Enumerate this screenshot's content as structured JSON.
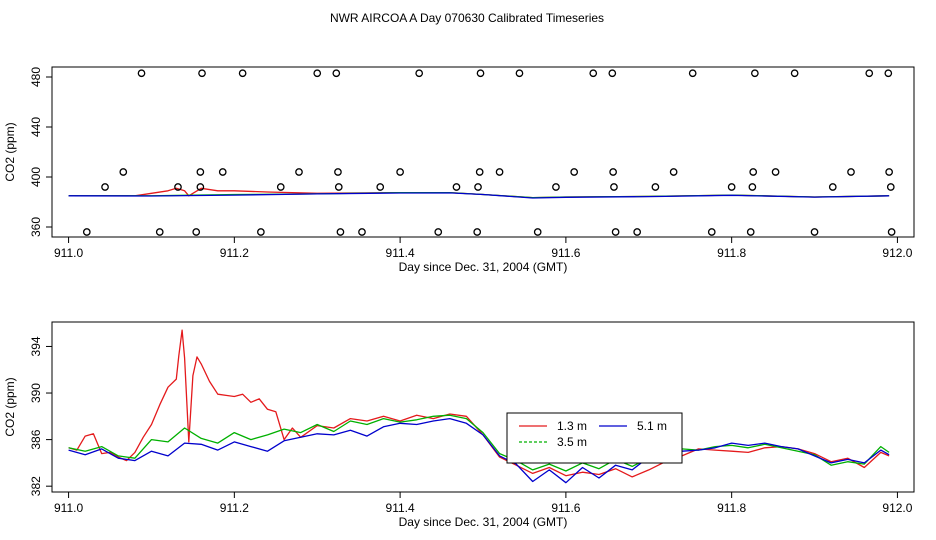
{
  "figure": {
    "title": "NWR AIRCOA A  Day 070630  Calibrated Timeseries"
  },
  "chart_data": [
    {
      "type": "scatter",
      "xlabel": "Day since Dec. 31, 2004 (GMT)",
      "ylabel": "CO2 (ppm)",
      "xlim": [
        910.98,
        912.02
      ],
      "ylim": [
        352,
        488
      ],
      "x_ticks": [
        911.0,
        911.2,
        911.4,
        911.6,
        911.8,
        912.0
      ],
      "x_tick_labels": [
        "911.0",
        "911.2",
        "911.4",
        "911.6",
        "911.8",
        "912.0"
      ],
      "y_ticks": [
        360,
        400,
        440,
        480
      ],
      "y_tick_labels": [
        "360",
        "400",
        "440",
        "480"
      ],
      "grid": false,
      "points": [
        {
          "x": 911.022,
          "y": 356
        },
        {
          "x": 911.044,
          "y": 392
        },
        {
          "x": 911.066,
          "y": 404
        },
        {
          "x": 911.088,
          "y": 483
        },
        {
          "x": 911.11,
          "y": 356
        },
        {
          "x": 911.132,
          "y": 392
        },
        {
          "x": 911.154,
          "y": 356
        },
        {
          "x": 911.159,
          "y": 404
        },
        {
          "x": 911.161,
          "y": 483
        },
        {
          "x": 911.159,
          "y": 392
        },
        {
          "x": 911.186,
          "y": 404
        },
        {
          "x": 911.21,
          "y": 483
        },
        {
          "x": 911.232,
          "y": 356
        },
        {
          "x": 911.256,
          "y": 392
        },
        {
          "x": 911.278,
          "y": 404
        },
        {
          "x": 911.3,
          "y": 483
        },
        {
          "x": 911.323,
          "y": 483
        },
        {
          "x": 911.325,
          "y": 404
        },
        {
          "x": 911.326,
          "y": 392
        },
        {
          "x": 911.328,
          "y": 356
        },
        {
          "x": 911.354,
          "y": 356
        },
        {
          "x": 911.376,
          "y": 392
        },
        {
          "x": 911.4,
          "y": 404
        },
        {
          "x": 911.423,
          "y": 483
        },
        {
          "x": 911.446,
          "y": 356
        },
        {
          "x": 911.468,
          "y": 392
        },
        {
          "x": 911.493,
          "y": 356
        },
        {
          "x": 911.494,
          "y": 392
        },
        {
          "x": 911.496,
          "y": 404
        },
        {
          "x": 911.497,
          "y": 483
        },
        {
          "x": 911.52,
          "y": 404
        },
        {
          "x": 911.544,
          "y": 483
        },
        {
          "x": 911.566,
          "y": 356
        },
        {
          "x": 911.588,
          "y": 392
        },
        {
          "x": 911.61,
          "y": 404
        },
        {
          "x": 911.633,
          "y": 483
        },
        {
          "x": 911.656,
          "y": 483
        },
        {
          "x": 911.657,
          "y": 404
        },
        {
          "x": 911.658,
          "y": 392
        },
        {
          "x": 911.66,
          "y": 356
        },
        {
          "x": 911.686,
          "y": 356
        },
        {
          "x": 911.708,
          "y": 392
        },
        {
          "x": 911.73,
          "y": 404
        },
        {
          "x": 911.753,
          "y": 483
        },
        {
          "x": 911.776,
          "y": 356
        },
        {
          "x": 911.8,
          "y": 392
        },
        {
          "x": 911.823,
          "y": 356
        },
        {
          "x": 911.825,
          "y": 392
        },
        {
          "x": 911.826,
          "y": 404
        },
        {
          "x": 911.828,
          "y": 483
        },
        {
          "x": 911.853,
          "y": 404
        },
        {
          "x": 911.876,
          "y": 483
        },
        {
          "x": 911.9,
          "y": 356
        },
        {
          "x": 911.922,
          "y": 392
        },
        {
          "x": 911.944,
          "y": 404
        },
        {
          "x": 911.966,
          "y": 483
        },
        {
          "x": 911.989,
          "y": 483
        },
        {
          "x": 911.99,
          "y": 404
        },
        {
          "x": 911.992,
          "y": 392
        },
        {
          "x": 911.993,
          "y": 356
        }
      ],
      "series": [
        {
          "name": "1.3 m",
          "color": "#e41a1c",
          "x": [
            911.0,
            911.04,
            911.08,
            911.1,
            911.12,
            911.13,
            911.14,
            911.145,
            911.16,
            911.18,
            911.2,
            911.24,
            911.3,
            911.4,
            911.46,
            911.5,
            911.56,
            911.6,
            911.7,
            911.8,
            911.9,
            911.99
          ],
          "y": [
            385,
            385,
            385,
            387,
            389,
            391,
            389,
            385,
            391,
            389,
            389,
            388,
            387,
            387.5,
            387.5,
            386,
            383.5,
            384,
            384.5,
            385.5,
            384,
            385
          ]
        },
        {
          "name": "3.5 m",
          "color": "#00c000",
          "x": [
            911.0,
            911.1,
            911.2,
            911.3,
            911.4,
            911.46,
            911.5,
            911.56,
            911.6,
            911.7,
            911.8,
            911.9,
            911.99
          ],
          "y": [
            385,
            385,
            386,
            386.5,
            387.5,
            387.5,
            386,
            383.5,
            384,
            384.5,
            385.5,
            384,
            385
          ]
        },
        {
          "name": "5.1 m",
          "color": "#0000cc",
          "x": [
            911.0,
            911.1,
            911.2,
            911.3,
            911.4,
            911.46,
            911.5,
            911.56,
            911.6,
            911.7,
            911.8,
            911.9,
            911.99
          ],
          "y": [
            385,
            384.8,
            385.5,
            386.5,
            387.2,
            387.3,
            386,
            383.2,
            383.8,
            384.3,
            385.4,
            383.9,
            385
          ]
        }
      ]
    },
    {
      "type": "line",
      "xlabel": "Day since Dec. 31, 2004 (GMT)",
      "ylabel": "CO2 (ppm)",
      "xlim": [
        910.98,
        912.02
      ],
      "ylim": [
        381.5,
        396.1
      ],
      "x_ticks": [
        911.0,
        911.2,
        911.4,
        911.6,
        911.8,
        912.0
      ],
      "x_tick_labels": [
        "911.0",
        "911.2",
        "911.4",
        "911.6",
        "911.8",
        "912.0"
      ],
      "y_ticks": [
        382,
        386,
        390,
        394
      ],
      "y_tick_labels": [
        "382",
        "386",
        "390",
        "394"
      ],
      "grid": false,
      "legend_position": "center-right",
      "series": [
        {
          "name": "1.3 m",
          "color": "#e41a1c",
          "x": [
            911.0,
            911.01,
            911.02,
            911.03,
            911.04,
            911.05,
            911.06,
            911.07,
            911.08,
            911.09,
            911.1,
            911.11,
            911.12,
            911.13,
            911.133,
            911.137,
            911.14,
            911.145,
            911.15,
            911.155,
            911.16,
            911.17,
            911.18,
            911.19,
            911.2,
            911.21,
            911.22,
            911.23,
            911.24,
            911.25,
            911.26,
            911.27,
            911.28,
            911.3,
            911.32,
            911.34,
            911.36,
            911.38,
            911.4,
            911.42,
            911.44,
            911.46,
            911.48,
            911.5,
            911.52,
            911.54,
            911.56,
            911.58,
            911.6,
            911.62,
            911.64,
            911.66,
            911.68,
            911.7,
            911.72,
            911.74,
            911.76,
            911.78,
            911.8,
            911.82,
            911.84,
            911.86,
            911.88,
            911.9,
            911.92,
            911.94,
            911.96,
            911.98,
            911.99
          ],
          "y": [
            385.3,
            385.1,
            386.3,
            386.5,
            384.8,
            384.9,
            384.5,
            384.2,
            384.9,
            386.2,
            387.3,
            389.0,
            390.5,
            391.2,
            393.2,
            395.4,
            393.0,
            385.8,
            391.5,
            393.1,
            392.5,
            391.0,
            389.9,
            389.8,
            389.7,
            389.9,
            389.2,
            389.5,
            388.6,
            388.4,
            386.0,
            387.0,
            386.2,
            387.2,
            387.0,
            387.8,
            387.6,
            388.0,
            387.6,
            388.1,
            387.8,
            388.2,
            388.0,
            386.4,
            384.5,
            383.8,
            383.1,
            383.6,
            382.9,
            383.2,
            383.0,
            383.5,
            382.8,
            383.4,
            384.1,
            384.6,
            385.2,
            385.1,
            385.0,
            384.9,
            385.3,
            385.4,
            385.2,
            384.8,
            384.1,
            384.4,
            383.6,
            384.9,
            384.6
          ]
        },
        {
          "name": "3.5 m",
          "color": "#00b000",
          "x": [
            911.0,
            911.02,
            911.04,
            911.06,
            911.08,
            911.1,
            911.12,
            911.14,
            911.16,
            911.18,
            911.2,
            911.22,
            911.24,
            911.26,
            911.28,
            911.3,
            911.32,
            911.34,
            911.36,
            911.38,
            911.4,
            911.42,
            911.44,
            911.46,
            911.48,
            911.5,
            911.52,
            911.54,
            911.56,
            911.58,
            911.6,
            911.62,
            911.64,
            911.66,
            911.68,
            911.7,
            911.72,
            911.74,
            911.76,
            911.78,
            911.8,
            911.82,
            911.84,
            911.86,
            911.88,
            911.9,
            911.92,
            911.94,
            911.96,
            911.98,
            911.99
          ],
          "y": [
            385.3,
            385.0,
            385.4,
            384.6,
            384.4,
            386.0,
            385.8,
            387.0,
            386.1,
            385.7,
            386.6,
            386.0,
            386.4,
            386.9,
            386.6,
            387.3,
            386.7,
            387.6,
            387.3,
            387.8,
            387.5,
            387.7,
            388.0,
            388.1,
            387.8,
            386.6,
            384.8,
            384.2,
            383.4,
            383.9,
            383.3,
            384.0,
            383.5,
            384.3,
            383.7,
            384.4,
            384.9,
            385.2,
            385.1,
            385.4,
            385.5,
            385.3,
            385.6,
            385.3,
            385.0,
            384.7,
            383.8,
            384.1,
            383.9,
            385.4,
            384.9
          ]
        },
        {
          "name": "5.1 m",
          "color": "#0000cc",
          "x": [
            911.0,
            911.02,
            911.04,
            911.06,
            911.08,
            911.1,
            911.12,
            911.14,
            911.16,
            911.18,
            911.2,
            911.22,
            911.24,
            911.26,
            911.28,
            911.3,
            911.32,
            911.34,
            911.36,
            911.38,
            911.4,
            911.42,
            911.44,
            911.46,
            911.48,
            911.5,
            911.52,
            911.54,
            911.56,
            911.58,
            911.6,
            911.62,
            911.64,
            911.66,
            911.68,
            911.7,
            911.72,
            911.74,
            911.76,
            911.78,
            911.8,
            911.82,
            911.84,
            911.86,
            911.88,
            911.9,
            911.92,
            911.94,
            911.96,
            911.98,
            911.99
          ],
          "y": [
            385.1,
            384.7,
            385.2,
            384.4,
            384.2,
            385.0,
            384.6,
            385.7,
            385.6,
            385.1,
            385.8,
            385.4,
            385.0,
            385.9,
            386.2,
            386.5,
            386.4,
            386.8,
            386.3,
            387.1,
            387.4,
            387.3,
            387.6,
            387.8,
            387.4,
            386.4,
            384.6,
            383.9,
            382.4,
            383.4,
            382.3,
            383.6,
            382.7,
            383.8,
            383.4,
            384.5,
            384.8,
            385.0,
            385.1,
            385.3,
            385.7,
            385.5,
            385.7,
            385.4,
            385.2,
            384.6,
            384.0,
            384.3,
            384.0,
            385.1,
            384.7
          ]
        }
      ]
    }
  ]
}
